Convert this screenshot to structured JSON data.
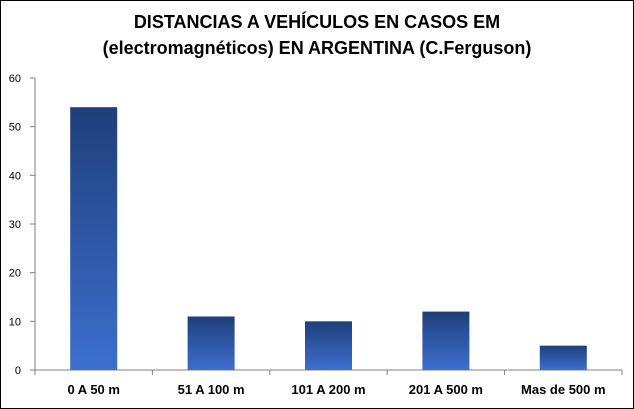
{
  "chart_data": {
    "type": "bar",
    "title_line1": "DISTANCIAS A VEHÍCULOS EN CASOS EM",
    "title_line2": "(electromagnéticos) EN ARGENTINA (C.Ferguson)",
    "categories": [
      "0 A 50 m",
      "51 A 100 m",
      "101 A 200 m",
      "201 A 500 m",
      "Mas de 500 m"
    ],
    "values": [
      54,
      11,
      10,
      12,
      5
    ],
    "ylim": [
      0,
      60
    ],
    "yticks": [
      "0",
      "10",
      "20",
      "30",
      "40",
      "50",
      "60"
    ],
    "xlabel": "",
    "ylabel": "",
    "grid": false,
    "legend": "none",
    "colors": {
      "bar_top": "#1f3f7a",
      "bar_bottom": "#3d6fcf",
      "axis": "#808080"
    }
  }
}
